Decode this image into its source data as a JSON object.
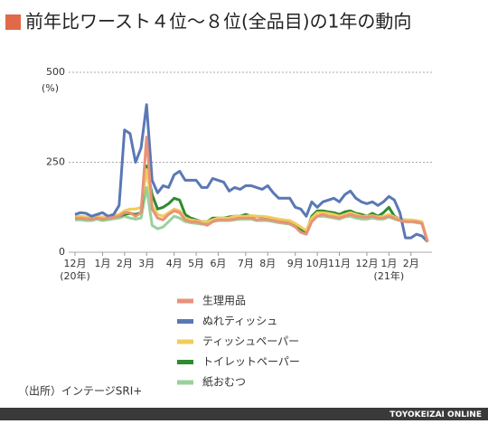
{
  "chart_data": {
    "type": "line",
    "title": "前年比ワースト４位～８位(全品目)の1年の動向",
    "y_unit": "(%)",
    "source": "（出所）インテージSRI+",
    "brand": "TOYOKEIZAI ONLINE",
    "year_notes": [
      "(20年)",
      "(21年)"
    ],
    "categories": [
      "12月",
      null,
      null,
      null,
      null,
      "1月",
      null,
      null,
      null,
      "2月",
      null,
      null,
      null,
      "3月",
      null,
      null,
      null,
      null,
      "4月",
      null,
      null,
      null,
      "5月",
      null,
      null,
      null,
      "6月",
      null,
      null,
      null,
      null,
      "7月",
      null,
      null,
      null,
      "8月",
      null,
      null,
      null,
      null,
      "9月",
      null,
      null,
      null,
      "10月",
      null,
      null,
      null,
      "11月",
      null,
      null,
      null,
      null,
      "12月",
      null,
      null,
      null,
      "1月",
      null,
      null,
      null,
      "2月",
      null,
      null,
      null
    ],
    "ylim": [
      0,
      500
    ],
    "yticks": [
      0,
      250,
      500
    ],
    "grid": true,
    "series": [
      {
        "name": "生理用品",
        "color": "#e8927a",
        "values": [
          95,
          95,
          93,
          92,
          95,
          92,
          95,
          97,
          100,
          110,
          110,
          100,
          110,
          320,
          120,
          95,
          90,
          105,
          115,
          110,
          90,
          85,
          85,
          80,
          75,
          85,
          90,
          90,
          90,
          92,
          95,
          95,
          95,
          90,
          92,
          90,
          88,
          85,
          82,
          80,
          70,
          55,
          50,
          85,
          100,
          105,
          100,
          98,
          95,
          100,
          105,
          100,
          98,
          97,
          100,
          95,
          95,
          100,
          95,
          88,
          85,
          85,
          85,
          80,
          30
        ]
      },
      {
        "name": "ぬれティッシュ",
        "color": "#5a78b5",
        "values": [
          105,
          110,
          108,
          100,
          105,
          110,
          100,
          105,
          130,
          340,
          330,
          250,
          290,
          410,
          200,
          165,
          185,
          180,
          215,
          225,
          200,
          200,
          200,
          180,
          180,
          205,
          200,
          195,
          170,
          180,
          175,
          185,
          185,
          180,
          175,
          185,
          165,
          150,
          150,
          150,
          125,
          120,
          100,
          140,
          125,
          140,
          145,
          150,
          140,
          160,
          170,
          150,
          140,
          135,
          140,
          130,
          140,
          155,
          145,
          110,
          40,
          40,
          50,
          45,
          30
        ]
      },
      {
        "name": "ティッシュペーパー",
        "color": "#f0cc5a",
        "values": [
          100,
          100,
          98,
          97,
          100,
          98,
          100,
          102,
          105,
          115,
          120,
          120,
          125,
          230,
          130,
          105,
          100,
          110,
          120,
          115,
          95,
          90,
          88,
          85,
          85,
          90,
          95,
          95,
          95,
          100,
          100,
          100,
          102,
          100,
          100,
          98,
          95,
          92,
          90,
          88,
          80,
          70,
          60,
          95,
          110,
          110,
          108,
          105,
          100,
          105,
          110,
          105,
          100,
          100,
          102,
          98,
          100,
          105,
          98,
          92,
          90,
          90,
          88,
          85,
          32
        ]
      },
      {
        "name": "トイレットペーパー",
        "color": "#2e8b2e",
        "values": [
          95,
          95,
          93,
          92,
          95,
          92,
          95,
          97,
          100,
          105,
          108,
          105,
          110,
          240,
          160,
          120,
          125,
          135,
          150,
          145,
          105,
          95,
          90,
          85,
          85,
          95,
          95,
          95,
          98,
          100,
          100,
          105,
          100,
          100,
          98,
          95,
          92,
          90,
          88,
          85,
          75,
          65,
          55,
          100,
          115,
          115,
          112,
          110,
          105,
          112,
          115,
          108,
          105,
          100,
          108,
          100,
          110,
          125,
          100,
          92,
          90,
          88,
          85,
          82,
          30
        ]
      },
      {
        "name": "紙おむつ",
        "color": "#9ad19a",
        "values": [
          90,
          90,
          88,
          88,
          92,
          88,
          90,
          93,
          95,
          100,
          95,
          92,
          95,
          180,
          75,
          65,
          70,
          85,
          100,
          95,
          85,
          82,
          80,
          78,
          80,
          85,
          88,
          88,
          88,
          90,
          92,
          92,
          92,
          88,
          88,
          88,
          85,
          82,
          80,
          78,
          70,
          60,
          50,
          88,
          100,
          100,
          98,
          95,
          92,
          98,
          100,
          95,
          92,
          92,
          95,
          92,
          92,
          98,
          92,
          88,
          85,
          85,
          82,
          80,
          28
        ]
      }
    ]
  }
}
